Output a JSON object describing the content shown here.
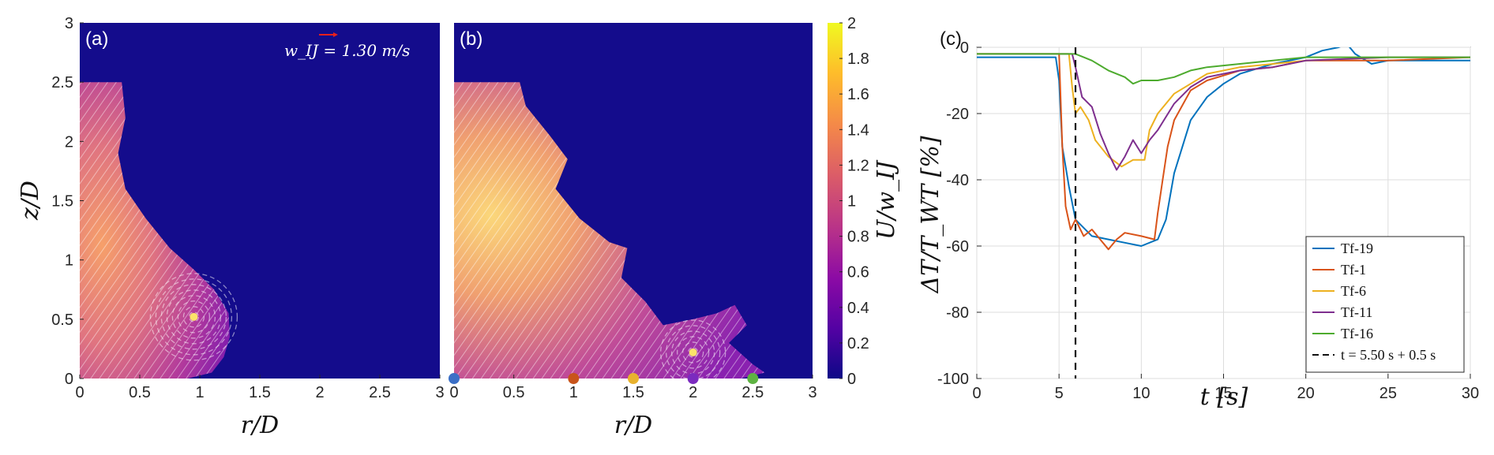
{
  "chart_data": [
    {
      "type": "heatmap",
      "panel_label": "(a)",
      "xlabel": "r/D",
      "ylabel": "z/D",
      "xlim": [
        0,
        3
      ],
      "ylim": [
        0,
        3
      ],
      "x_ticks": [
        "0",
        "0.5",
        "1",
        "1.5",
        "2",
        "2.5",
        "3"
      ],
      "y_ticks": [
        "0",
        "0.5",
        "1",
        "1.5",
        "2",
        "2.5",
        "3"
      ],
      "reference_vector_label": "w_IJ = 1.30 m/s",
      "reference_vector_color": "#e8201c",
      "background_color": "#140c8c",
      "field_outline": [
        [
          0,
          0
        ],
        [
          0,
          2.5
        ],
        [
          0.35,
          2.5
        ],
        [
          0.38,
          2.2
        ],
        [
          0.32,
          1.9
        ],
        [
          0.38,
          1.6
        ],
        [
          0.55,
          1.35
        ],
        [
          0.75,
          1.1
        ],
        [
          0.95,
          0.92
        ],
        [
          1.12,
          0.75
        ],
        [
          1.24,
          0.55
        ],
        [
          1.25,
          0.35
        ],
        [
          1.2,
          0.18
        ],
        [
          1.1,
          0.05
        ],
        [
          0.9,
          0
        ]
      ],
      "vortex_center": [
        0.95,
        0.52
      ]
    },
    {
      "type": "heatmap",
      "panel_label": "(b)",
      "xlabel": "r/D",
      "xlim": [
        0,
        3
      ],
      "ylim": [
        0,
        3
      ],
      "x_ticks": [
        "0",
        "0.5",
        "1",
        "1.5",
        "2",
        "2.5",
        "3"
      ],
      "background_color": "#140c8c",
      "colorbar": {
        "label": "U/w_IJ",
        "range": [
          0,
          2
        ],
        "ticks": [
          "0",
          "0.2",
          "0.4",
          "0.6",
          "0.8",
          "1",
          "1.2",
          "1.4",
          "1.6",
          "1.8",
          "2"
        ],
        "colormap": [
          "#0d0887",
          "#5302a3",
          "#8b0aa5",
          "#b83289",
          "#db5c68",
          "#f48849",
          "#febd2a",
          "#f0f921"
        ]
      },
      "field_outline": [
        [
          0,
          0
        ],
        [
          0,
          2.5
        ],
        [
          0.55,
          2.5
        ],
        [
          0.6,
          2.3
        ],
        [
          0.8,
          2.05
        ],
        [
          0.95,
          1.85
        ],
        [
          0.85,
          1.6
        ],
        [
          1.05,
          1.35
        ],
        [
          1.3,
          1.15
        ],
        [
          1.45,
          1.1
        ],
        [
          1.4,
          0.85
        ],
        [
          1.6,
          0.65
        ],
        [
          1.75,
          0.45
        ],
        [
          2.0,
          0.5
        ],
        [
          2.2,
          0.55
        ],
        [
          2.35,
          0.62
        ],
        [
          2.45,
          0.45
        ],
        [
          2.3,
          0.3
        ],
        [
          2.5,
          0.12
        ],
        [
          2.6,
          0.05
        ],
        [
          2.4,
          0
        ]
      ],
      "vortex_center": [
        2.0,
        0.22
      ],
      "sensor_markers": [
        {
          "r": 0,
          "color": "#3b6fc6"
        },
        {
          "r": 1,
          "color": "#c8541b"
        },
        {
          "r": 1.5,
          "color": "#e8b22e"
        },
        {
          "r": 2,
          "color": "#7b2bbf"
        },
        {
          "r": 2.5,
          "color": "#5eb342"
        }
      ]
    },
    {
      "type": "line",
      "panel_label": "(c)",
      "xlabel": "t [s]",
      "ylabel": "ΔT/T_WT [%]",
      "xlim": [
        0,
        30
      ],
      "ylim": [
        -100,
        0
      ],
      "x_ticks": [
        "0",
        "5",
        "10",
        "15",
        "20",
        "25",
        "30"
      ],
      "y_ticks": [
        "0",
        "-20",
        "-40",
        "-60",
        "-80",
        "-100"
      ],
      "grid": true,
      "legend_position": "bottom-right",
      "vline": {
        "x": 6.0,
        "label": "t = 5.50 s + 0.5 s"
      },
      "series": [
        {
          "name": "Tf-19",
          "color": "#0072bd",
          "points": [
            [
              0,
              -3
            ],
            [
              4.8,
              -3
            ],
            [
              5.0,
              -10
            ],
            [
              5.2,
              -30
            ],
            [
              5.6,
              -42
            ],
            [
              6.0,
              -52
            ],
            [
              7.0,
              -57
            ],
            [
              8.0,
              -58
            ],
            [
              9.0,
              -59
            ],
            [
              10.0,
              -60
            ],
            [
              11.0,
              -58
            ],
            [
              11.5,
              -52
            ],
            [
              12.0,
              -38
            ],
            [
              13.0,
              -22
            ],
            [
              14.0,
              -15
            ],
            [
              15.0,
              -11
            ],
            [
              16.0,
              -8
            ],
            [
              18.0,
              -5
            ],
            [
              20.0,
              -3
            ],
            [
              21.0,
              -1
            ],
            [
              22.0,
              0
            ],
            [
              22.5,
              1
            ],
            [
              23.0,
              -2
            ],
            [
              24.0,
              -5
            ],
            [
              25.0,
              -4
            ],
            [
              27.0,
              -4
            ],
            [
              30.0,
              -4
            ]
          ]
        },
        {
          "name": "Tf-1",
          "color": "#d95319",
          "points": [
            [
              0,
              -2
            ],
            [
              5.0,
              -2
            ],
            [
              5.2,
              -30
            ],
            [
              5.4,
              -48
            ],
            [
              5.7,
              -55
            ],
            [
              6.0,
              -52
            ],
            [
              6.5,
              -57
            ],
            [
              7.0,
              -55
            ],
            [
              8.0,
              -61
            ],
            [
              8.5,
              -58
            ],
            [
              9.0,
              -56
            ],
            [
              10.0,
              -57
            ],
            [
              10.8,
              -58
            ],
            [
              11.0,
              -50
            ],
            [
              11.3,
              -40
            ],
            [
              11.6,
              -30
            ],
            [
              12.0,
              -22
            ],
            [
              13.0,
              -13
            ],
            [
              14.0,
              -10
            ],
            [
              16.0,
              -7
            ],
            [
              18.0,
              -6
            ],
            [
              20.0,
              -4
            ],
            [
              25.0,
              -4
            ],
            [
              30.0,
              -3
            ]
          ]
        },
        {
          "name": "Tf-6",
          "color": "#edb120",
          "points": [
            [
              0,
              -2
            ],
            [
              5.6,
              -2
            ],
            [
              5.8,
              -12
            ],
            [
              6.0,
              -20
            ],
            [
              6.3,
              -18
            ],
            [
              6.8,
              -22
            ],
            [
              7.2,
              -28
            ],
            [
              8.0,
              -33
            ],
            [
              8.8,
              -36
            ],
            [
              9.5,
              -34
            ],
            [
              10.2,
              -34
            ],
            [
              10.5,
              -25
            ],
            [
              11.0,
              -20
            ],
            [
              12.0,
              -14
            ],
            [
              14.0,
              -8
            ],
            [
              16.0,
              -6
            ],
            [
              20.0,
              -4
            ],
            [
              25.0,
              -3
            ],
            [
              30.0,
              -3
            ]
          ]
        },
        {
          "name": "Tf-11",
          "color": "#7e2f8e",
          "points": [
            [
              0,
              -2
            ],
            [
              5.8,
              -2
            ],
            [
              6.0,
              -6
            ],
            [
              6.4,
              -15
            ],
            [
              7.0,
              -18
            ],
            [
              7.5,
              -26
            ],
            [
              8.0,
              -32
            ],
            [
              8.5,
              -37
            ],
            [
              9.0,
              -33
            ],
            [
              9.5,
              -28
            ],
            [
              10.0,
              -32
            ],
            [
              10.5,
              -28
            ],
            [
              11.0,
              -25
            ],
            [
              12.0,
              -17
            ],
            [
              13.0,
              -12
            ],
            [
              14.0,
              -9
            ],
            [
              16.0,
              -7
            ],
            [
              18.0,
              -6
            ],
            [
              20.0,
              -4
            ],
            [
              25.0,
              -3
            ],
            [
              30.0,
              -3
            ]
          ]
        },
        {
          "name": "Tf-16",
          "color": "#4dab2e",
          "points": [
            [
              0,
              -2
            ],
            [
              6.0,
              -2
            ],
            [
              6.5,
              -3
            ],
            [
              7.0,
              -4
            ],
            [
              8.0,
              -7
            ],
            [
              9.0,
              -9
            ],
            [
              9.5,
              -11
            ],
            [
              10.0,
              -10
            ],
            [
              11.0,
              -10
            ],
            [
              12.0,
              -9
            ],
            [
              13.0,
              -7
            ],
            [
              14.0,
              -6
            ],
            [
              16.0,
              -5
            ],
            [
              18.0,
              -4
            ],
            [
              20.0,
              -3
            ],
            [
              25.0,
              -3
            ],
            [
              30.0,
              -3
            ]
          ]
        }
      ]
    }
  ]
}
